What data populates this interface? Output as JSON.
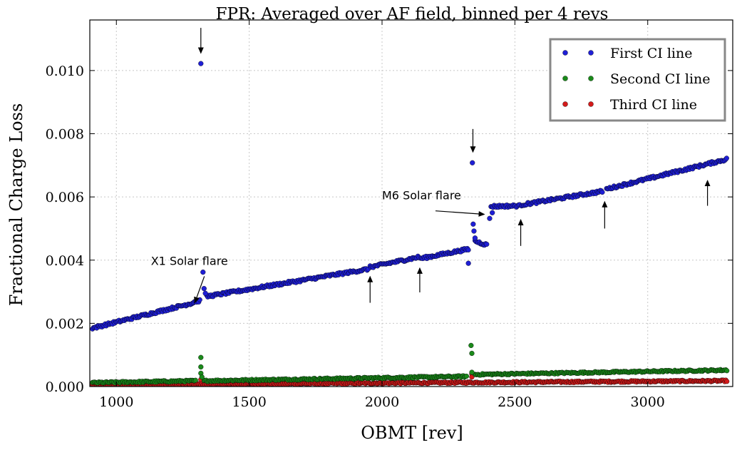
{
  "chart_data": {
    "type": "scatter",
    "title": "FPR: Averaged over AF field, binned per 4 revs",
    "xlabel": "OBMT [rev]",
    "ylabel": "Fractional Charge Loss",
    "xlim": [
      900,
      3320
    ],
    "ylim": [
      0.0,
      0.0116
    ],
    "x_ticks": [
      1000,
      1500,
      2000,
      2500,
      3000
    ],
    "x_tick_labels": [
      "1000",
      "1500",
      "2000",
      "2500",
      "3000"
    ],
    "y_ticks": [
      0.0,
      0.002,
      0.004,
      0.006,
      0.008,
      0.01
    ],
    "y_tick_labels": [
      "0.000",
      "0.002",
      "0.004",
      "0.006",
      "0.008",
      "0.010"
    ],
    "grid": true,
    "legend_position": "top-right",
    "series": [
      {
        "name": "First CI line",
        "color": "#1f1fd6",
        "segments": [
          {
            "x_start": 910,
            "x_end": 1290,
            "y_start": 0.00185,
            "y_end": 0.00265
          },
          {
            "x_start": 1290,
            "x_end": 1315,
            "y_start": 0.00268,
            "y_end": 0.00272
          },
          {
            "x_start": 1340,
            "x_end": 1950,
            "y_start": 0.00285,
            "y_end": 0.00372
          },
          {
            "x_start": 1955,
            "x_end": 2140,
            "y_start": 0.00378,
            "y_end": 0.0041
          },
          {
            "x_start": 2145,
            "x_end": 2325,
            "y_start": 0.00405,
            "y_end": 0.00435
          },
          {
            "x_start": 2350,
            "x_end": 2395,
            "y_start": 0.0046,
            "y_end": 0.00448
          },
          {
            "x_start": 2410,
            "x_end": 2520,
            "y_start": 0.0057,
            "y_end": 0.00572
          },
          {
            "x_start": 2525,
            "x_end": 2830,
            "y_start": 0.00575,
            "y_end": 0.00618
          },
          {
            "x_start": 2845,
            "x_end": 3300,
            "y_start": 0.00625,
            "y_end": 0.0072
          }
        ],
        "points": [
          {
            "x": 1318,
            "y": 0.01022
          },
          {
            "x": 1326,
            "y": 0.00362
          },
          {
            "x": 1330,
            "y": 0.0031
          },
          {
            "x": 1335,
            "y": 0.00295
          },
          {
            "x": 2325,
            "y": 0.0039
          },
          {
            "x": 2340,
            "y": 0.00708
          },
          {
            "x": 2343,
            "y": 0.00514
          },
          {
            "x": 2346,
            "y": 0.00492
          },
          {
            "x": 2350,
            "y": 0.0047
          },
          {
            "x": 2405,
            "y": 0.00532
          },
          {
            "x": 2415,
            "y": 0.0055
          }
        ]
      },
      {
        "name": "Second CI line",
        "color": "#1a8a1a",
        "segments": [
          {
            "x_start": 910,
            "x_end": 1300,
            "y_start": 0.00012,
            "y_end": 0.00018
          },
          {
            "x_start": 1330,
            "x_end": 2320,
            "y_start": 0.00018,
            "y_end": 0.00032
          },
          {
            "x_start": 2350,
            "x_end": 3300,
            "y_start": 0.00038,
            "y_end": 0.00052
          }
        ],
        "points": [
          {
            "x": 1318,
            "y": 0.00092
          },
          {
            "x": 1318,
            "y": 0.00062
          },
          {
            "x": 1318,
            "y": 0.00042
          },
          {
            "x": 1322,
            "y": 0.0003
          },
          {
            "x": 2335,
            "y": 0.0013
          },
          {
            "x": 2338,
            "y": 0.00105
          },
          {
            "x": 2338,
            "y": 0.00045
          }
        ]
      },
      {
        "name": "Third CI line",
        "color": "#d41a1a",
        "segments": [
          {
            "x_start": 910,
            "x_end": 3300,
            "y_start": 5e-05,
            "y_end": 0.00018
          }
        ],
        "points": [
          {
            "x": 1318,
            "y": 0.00022
          },
          {
            "x": 2338,
            "y": 0.0004
          },
          {
            "x": 2338,
            "y": 0.0003
          }
        ]
      }
    ],
    "annotations": [
      {
        "text": "X1 Solar flare",
        "text_x": 1130,
        "text_y": 0.00385,
        "arrow_to_x": 1295,
        "arrow_to_y": 0.00265
      },
      {
        "text": "M6 Solar flare",
        "text_x": 2000,
        "text_y": 0.00592,
        "arrow_to_x": 2385,
        "arrow_to_y": 0.00545
      }
    ],
    "markers": [
      {
        "x": 1318,
        "from_y": 0.01135,
        "to_y": 0.01055,
        "direction": "down"
      },
      {
        "x": 2342,
        "from_y": 0.00815,
        "to_y": 0.00742,
        "direction": "down"
      },
      {
        "x": 1955,
        "from_y": 0.00265,
        "to_y": 0.00348,
        "direction": "up"
      },
      {
        "x": 2142,
        "from_y": 0.00298,
        "to_y": 0.00375,
        "direction": "up"
      },
      {
        "x": 2522,
        "from_y": 0.00445,
        "to_y": 0.00528,
        "direction": "up"
      },
      {
        "x": 2838,
        "from_y": 0.005,
        "to_y": 0.00585,
        "direction": "up"
      },
      {
        "x": 3225,
        "from_y": 0.00572,
        "to_y": 0.00652,
        "direction": "up"
      }
    ]
  }
}
